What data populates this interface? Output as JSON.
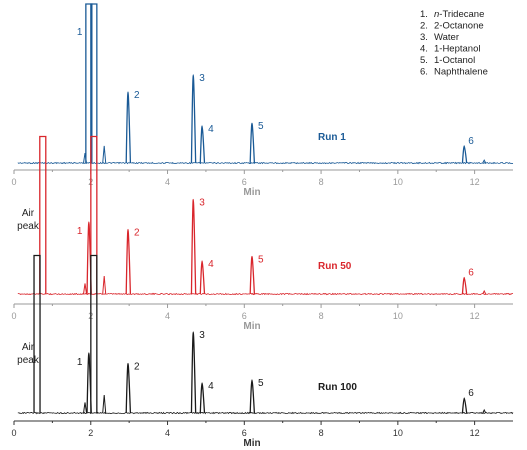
{
  "chart_data": {
    "type": "line",
    "x_range": [
      0,
      13
    ],
    "x_ticks": [
      "0",
      "2",
      "4",
      "6",
      "8",
      "10",
      "12"
    ],
    "legend": [
      {
        "num": "1.",
        "label_italic": "n",
        "label": "-Tridecane"
      },
      {
        "num": "2.",
        "label_italic": "",
        "label": "2-Octanone"
      },
      {
        "num": "3.",
        "label_italic": "",
        "label": "Water"
      },
      {
        "num": "4.",
        "label_italic": "",
        "label": "1-Heptanol"
      },
      {
        "num": "5.",
        "label_italic": "",
        "label": "1-Octanol"
      },
      {
        "num": "6.",
        "label_italic": "",
        "label": "Naphthalene"
      }
    ],
    "legend_position": "top-right",
    "panels": [
      {
        "run_label": "Run 1",
        "color": "#1a5a96",
        "xlabel": "Min",
        "air_peak_label": "",
        "peaks": [
          {
            "label": "1",
            "x": 1.95,
            "height": 1.15
          },
          {
            "label": "",
            "x": 2.08,
            "height": 1.15
          },
          {
            "label": "2",
            "x": 2.97,
            "height": 0.5
          },
          {
            "label": "3",
            "x": 4.67,
            "height": 0.62
          },
          {
            "label": "4",
            "x": 4.9,
            "height": 0.26
          },
          {
            "label": "5",
            "x": 6.2,
            "height": 0.28
          },
          {
            "label": "6",
            "x": 11.73,
            "height": 0.12
          }
        ]
      },
      {
        "run_label": "Run 50",
        "color": "#d9262c",
        "xlabel": "Min",
        "air_peak_label": "Air\npeak",
        "peaks": [
          {
            "label": "",
            "x": 0.75,
            "height": 1.05
          },
          {
            "label": "1",
            "x": 1.95,
            "height": 0.48
          },
          {
            "label": "",
            "x": 2.08,
            "height": 1.05
          },
          {
            "label": "2",
            "x": 2.97,
            "height": 0.43
          },
          {
            "label": "3",
            "x": 4.67,
            "height": 0.63
          },
          {
            "label": "4",
            "x": 4.9,
            "height": 0.22
          },
          {
            "label": "5",
            "x": 6.2,
            "height": 0.25
          },
          {
            "label": "6",
            "x": 11.73,
            "height": 0.11
          }
        ]
      },
      {
        "run_label": "Run 100",
        "color": "#1a1a1a",
        "xlabel": "Min",
        "air_peak_label": "Air\npeak",
        "peaks": [
          {
            "label": "",
            "x": 0.6,
            "height": 1.05
          },
          {
            "label": "1",
            "x": 1.95,
            "height": 0.4
          },
          {
            "label": "",
            "x": 2.08,
            "height": 1.05
          },
          {
            "label": "2",
            "x": 2.97,
            "height": 0.33
          },
          {
            "label": "3",
            "x": 4.67,
            "height": 0.54
          },
          {
            "label": "4",
            "x": 4.9,
            "height": 0.2
          },
          {
            "label": "5",
            "x": 6.2,
            "height": 0.22
          },
          {
            "label": "6",
            "x": 11.73,
            "height": 0.1
          }
        ]
      }
    ]
  }
}
